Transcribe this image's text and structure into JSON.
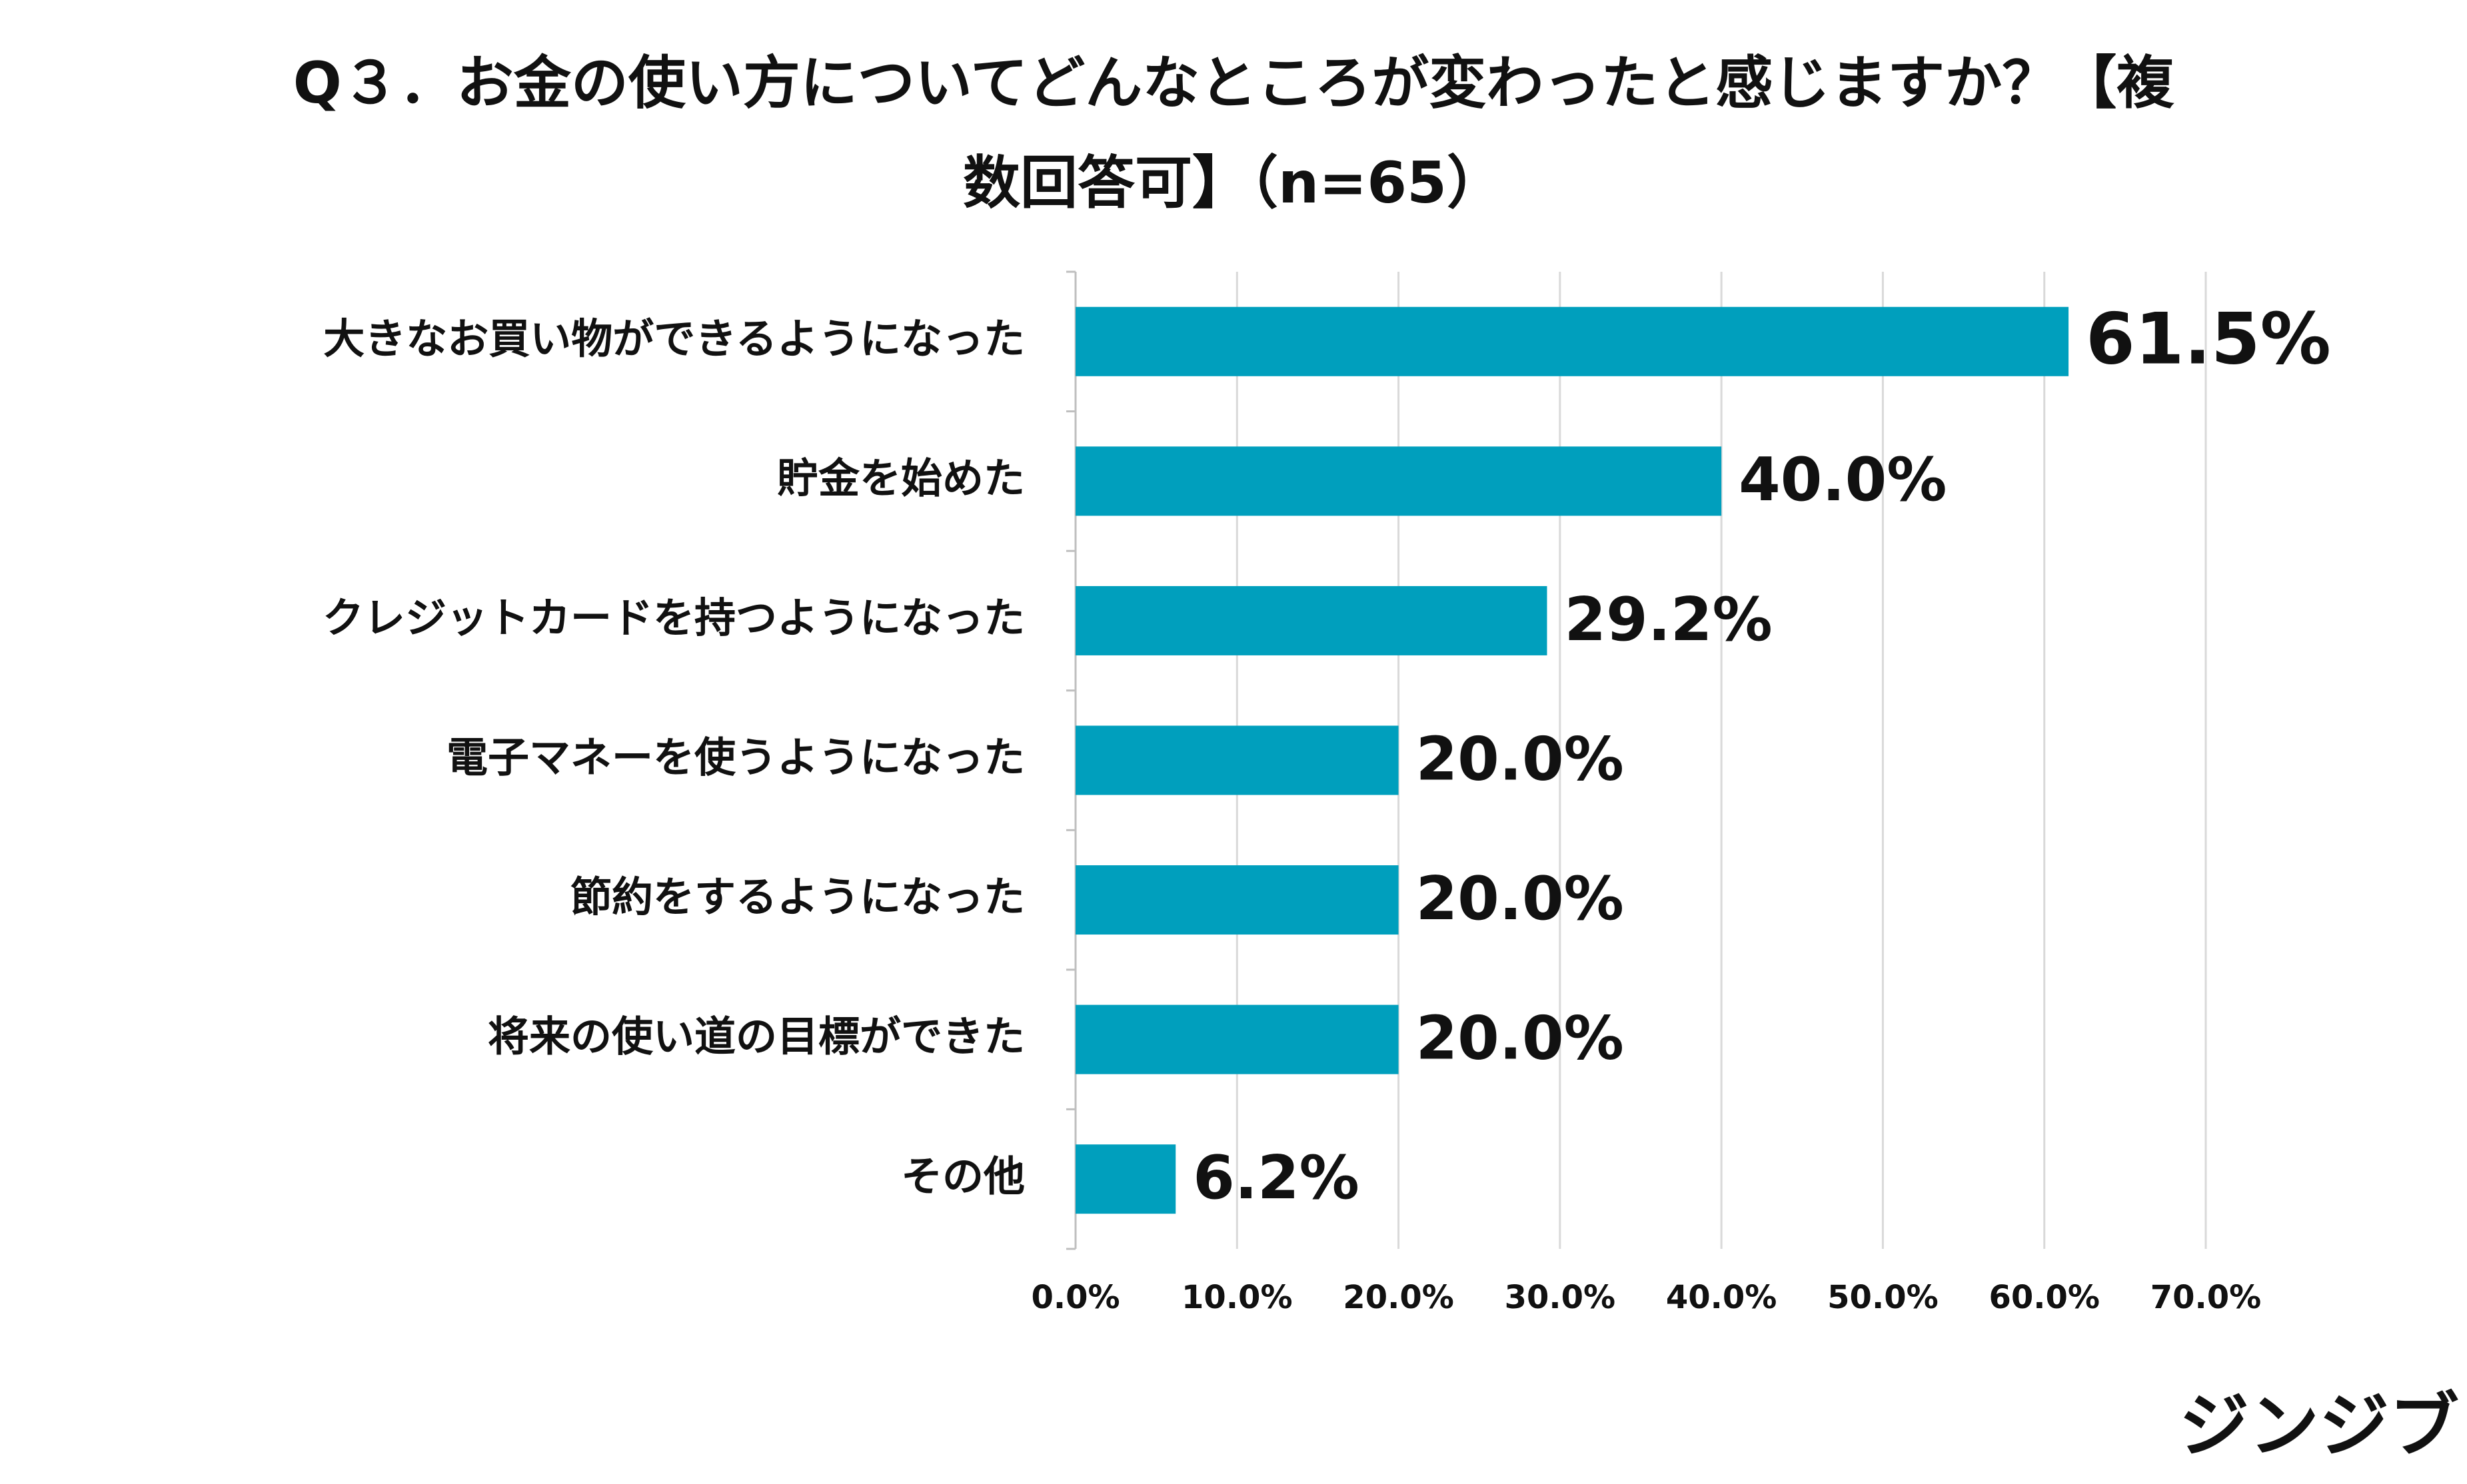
{
  "chart_data": {
    "type": "bar",
    "orientation": "horizontal",
    "title": "Q３．お金の使い方についてどんなところが変わったと感じますか？【複数回答可】（n=65）",
    "categories": [
      "大きなお買い物ができるようになった",
      "貯金を始めた",
      "クレジットカードを持つようになった",
      "電子マネーを使うようになった",
      "節約をするようになった",
      "将来の使い道の目標ができた",
      "その他"
    ],
    "values": [
      61.5,
      40.0,
      29.2,
      20.0,
      20.0,
      20.0,
      6.2
    ],
    "value_labels": [
      "61.5%",
      "40.0%",
      "29.2%",
      "20.0%",
      "20.0%",
      "20.0%",
      "6.2%"
    ],
    "color": "#009fbd",
    "xlim": [
      0,
      70
    ],
    "xticks": [
      {
        "value": 0,
        "label": "0.0%"
      },
      {
        "value": 10,
        "label": "10.0%"
      },
      {
        "value": 20,
        "label": "20.0%"
      },
      {
        "value": 30,
        "label": "30.0%"
      },
      {
        "value": 40,
        "label": "40.0%"
      },
      {
        "value": 50,
        "label": "50.0%"
      },
      {
        "value": 60,
        "label": "60.0%"
      },
      {
        "value": 70,
        "label": "70.0%"
      }
    ],
    "grid": true
  },
  "logo": "ジンジブ"
}
